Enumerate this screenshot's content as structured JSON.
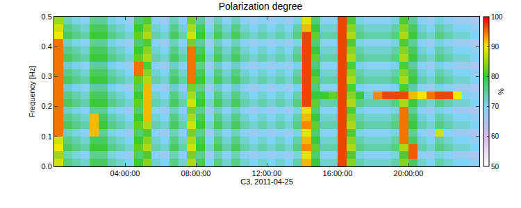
{
  "chart_data": {
    "type": "heatmap",
    "title": "Polarization degree",
    "x_label": "C3, 2011-04-25",
    "y_label": "Frequency [Hz]",
    "xlim": [
      0,
      24
    ],
    "xticks": [
      {
        "value": 4,
        "label": "04:00:00"
      },
      {
        "value": 8,
        "label": "08:00:00"
      },
      {
        "value": 12,
        "label": "12:00:00"
      },
      {
        "value": 16,
        "label": "16:00:00"
      },
      {
        "value": 20,
        "label": "20:00:00"
      }
    ],
    "ylim": [
      0,
      0.5
    ],
    "yticks": [
      {
        "value": 0,
        "label": "0.0"
      },
      0.1,
      0.2,
      0.3,
      0.4,
      0.5
    ],
    "x": [
      0.25,
      0.75,
      1.25,
      1.75,
      2.25,
      2.75,
      3.25,
      3.75,
      4.25,
      4.75,
      5.25,
      5.75,
      6.25,
      6.75,
      7.25,
      7.75,
      8.25,
      8.75,
      9.25,
      9.75,
      10.25,
      10.75,
      11.25,
      11.75,
      12.25,
      12.75,
      13.25,
      13.75,
      14.25,
      14.75,
      15.25,
      15.75,
      16.25,
      16.75,
      17.25,
      17.75,
      18.25,
      18.75,
      19.25,
      19.75,
      20.25,
      20.75,
      21.25,
      21.75,
      22.25,
      22.75,
      23.25,
      23.75
    ],
    "y": [
      0.0125,
      0.0375,
      0.0625,
      0.0875,
      0.1125,
      0.1375,
      0.1625,
      0.1875,
      0.2125,
      0.2375,
      0.2625,
      0.2875,
      0.3125,
      0.3375,
      0.3625,
      0.3875,
      0.4125,
      0.4375,
      0.4625,
      0.4875
    ],
    "cells": [
      [
        88,
        76,
        74,
        72,
        78,
        78,
        74,
        72,
        70,
        80,
        84,
        72,
        70,
        76,
        72,
        86,
        78,
        70,
        76,
        72,
        76,
        72,
        70,
        72,
        70,
        72,
        70,
        74,
        92,
        80,
        72,
        72,
        97,
        84,
        74,
        72,
        72,
        72,
        74,
        84,
        78,
        72,
        70,
        74,
        72,
        70,
        70,
        68
      ],
      [
        85,
        73,
        71,
        69,
        75,
        75,
        71,
        69,
        67,
        77,
        81,
        69,
        67,
        73,
        69,
        83,
        75,
        67,
        73,
        69,
        73,
        69,
        67,
        69,
        67,
        69,
        67,
        71,
        89,
        77,
        69,
        69,
        97,
        81,
        71,
        69,
        69,
        69,
        71,
        81,
        96,
        69,
        67,
        71,
        69,
        67,
        67,
        65
      ],
      [
        90,
        78,
        76,
        74,
        80,
        80,
        76,
        74,
        72,
        82,
        86,
        74,
        72,
        78,
        74,
        88,
        80,
        72,
        78,
        74,
        78,
        74,
        72,
        74,
        72,
        74,
        72,
        76,
        94,
        82,
        74,
        74,
        97,
        86,
        76,
        74,
        74,
        74,
        76,
        86,
        96,
        74,
        72,
        76,
        74,
        72,
        72,
        70
      ],
      [
        88,
        76,
        74,
        72,
        78,
        78,
        74,
        72,
        70,
        80,
        84,
        72,
        70,
        76,
        72,
        86,
        78,
        70,
        76,
        72,
        76,
        72,
        70,
        72,
        70,
        72,
        70,
        74,
        92,
        80,
        72,
        72,
        97,
        84,
        74,
        72,
        72,
        72,
        74,
        95,
        78,
        72,
        70,
        74,
        72,
        70,
        70,
        68
      ],
      [
        95,
        73,
        71,
        69,
        92,
        75,
        71,
        69,
        67,
        77,
        81,
        69,
        67,
        73,
        69,
        83,
        75,
        67,
        73,
        69,
        73,
        69,
        67,
        69,
        67,
        69,
        67,
        71,
        89,
        77,
        69,
        69,
        97,
        81,
        71,
        69,
        69,
        69,
        71,
        95,
        75,
        69,
        67,
        88,
        69,
        67,
        67,
        65
      ],
      [
        95,
        78,
        76,
        74,
        92,
        80,
        76,
        74,
        72,
        82,
        86,
        74,
        72,
        78,
        74,
        88,
        80,
        72,
        78,
        74,
        78,
        74,
        72,
        74,
        72,
        74,
        72,
        76,
        94,
        82,
        74,
        74,
        97,
        86,
        76,
        74,
        74,
        74,
        76,
        95,
        80,
        74,
        72,
        76,
        74,
        72,
        72,
        70
      ],
      [
        95,
        76,
        74,
        72,
        92,
        78,
        74,
        72,
        70,
        80,
        92,
        72,
        70,
        76,
        72,
        86,
        78,
        70,
        76,
        72,
        76,
        72,
        70,
        72,
        70,
        72,
        70,
        74,
        92,
        80,
        72,
        72,
        97,
        84,
        74,
        72,
        72,
        72,
        74,
        95,
        78,
        72,
        70,
        74,
        72,
        70,
        70,
        68
      ],
      [
        95,
        73,
        71,
        69,
        75,
        75,
        71,
        69,
        67,
        77,
        92,
        69,
        67,
        73,
        69,
        83,
        75,
        67,
        73,
        69,
        73,
        69,
        67,
        69,
        67,
        69,
        67,
        71,
        89,
        77,
        69,
        69,
        97,
        81,
        71,
        69,
        69,
        69,
        71,
        95,
        75,
        69,
        67,
        71,
        69,
        67,
        67,
        65
      ],
      [
        95,
        78,
        76,
        74,
        80,
        80,
        76,
        74,
        72,
        82,
        92,
        74,
        72,
        78,
        74,
        88,
        80,
        72,
        78,
        74,
        78,
        74,
        72,
        74,
        72,
        74,
        72,
        76,
        97,
        82,
        74,
        74,
        97,
        86,
        76,
        74,
        74,
        74,
        76,
        86,
        80,
        74,
        72,
        76,
        74,
        72,
        72,
        70
      ],
      [
        95,
        76,
        74,
        72,
        78,
        78,
        74,
        72,
        70,
        80,
        92,
        72,
        70,
        76,
        72,
        86,
        78,
        70,
        76,
        72,
        76,
        72,
        70,
        72,
        70,
        72,
        70,
        74,
        97,
        80,
        80,
        82,
        97,
        84,
        80,
        72,
        94,
        97,
        97,
        97,
        92,
        90,
        95,
        97,
        97,
        90,
        70,
        68
      ],
      [
        95,
        73,
        71,
        69,
        75,
        75,
        71,
        69,
        67,
        77,
        92,
        69,
        67,
        73,
        69,
        83,
        75,
        67,
        73,
        69,
        73,
        69,
        67,
        69,
        67,
        69,
        67,
        71,
        97,
        77,
        69,
        69,
        97,
        81,
        71,
        69,
        69,
        69,
        71,
        81,
        75,
        69,
        67,
        71,
        69,
        67,
        67,
        65
      ],
      [
        95,
        78,
        76,
        74,
        80,
        80,
        76,
        74,
        72,
        82,
        86,
        74,
        72,
        78,
        74,
        95,
        80,
        72,
        78,
        74,
        78,
        74,
        72,
        74,
        72,
        74,
        72,
        76,
        97,
        82,
        74,
        74,
        97,
        86,
        76,
        74,
        74,
        74,
        76,
        86,
        80,
        74,
        72,
        76,
        74,
        72,
        72,
        70
      ],
      [
        95,
        76,
        74,
        72,
        78,
        78,
        74,
        72,
        70,
        95,
        84,
        72,
        70,
        76,
        72,
        95,
        78,
        70,
        76,
        72,
        76,
        72,
        70,
        72,
        70,
        72,
        70,
        74,
        97,
        80,
        72,
        72,
        97,
        84,
        74,
        72,
        72,
        72,
        74,
        84,
        78,
        72,
        70,
        74,
        72,
        70,
        70,
        68
      ],
      [
        95,
        73,
        71,
        69,
        75,
        75,
        71,
        69,
        67,
        95,
        81,
        69,
        67,
        73,
        69,
        95,
        75,
        67,
        73,
        69,
        73,
        69,
        67,
        69,
        67,
        69,
        67,
        71,
        97,
        77,
        69,
        69,
        97,
        81,
        71,
        69,
        69,
        69,
        71,
        81,
        75,
        69,
        67,
        71,
        69,
        67,
        67,
        65
      ],
      [
        95,
        78,
        76,
        74,
        80,
        80,
        76,
        74,
        72,
        82,
        86,
        74,
        72,
        78,
        74,
        95,
        80,
        72,
        78,
        74,
        78,
        74,
        72,
        74,
        72,
        74,
        72,
        76,
        97,
        82,
        74,
        74,
        97,
        86,
        76,
        74,
        74,
        74,
        76,
        86,
        80,
        74,
        72,
        76,
        74,
        72,
        72,
        70
      ],
      [
        95,
        76,
        74,
        72,
        78,
        78,
        74,
        72,
        70,
        80,
        84,
        72,
        70,
        76,
        72,
        95,
        78,
        70,
        76,
        72,
        76,
        72,
        70,
        72,
        70,
        72,
        70,
        74,
        97,
        80,
        72,
        72,
        97,
        84,
        74,
        72,
        72,
        72,
        74,
        84,
        78,
        72,
        70,
        74,
        72,
        70,
        70,
        68
      ],
      [
        95,
        73,
        71,
        69,
        75,
        75,
        71,
        69,
        67,
        77,
        81,
        69,
        67,
        73,
        69,
        83,
        75,
        67,
        73,
        69,
        73,
        69,
        67,
        69,
        67,
        69,
        67,
        71,
        97,
        77,
        69,
        69,
        97,
        81,
        71,
        69,
        69,
        69,
        71,
        81,
        75,
        69,
        67,
        71,
        69,
        67,
        67,
        65
      ],
      [
        90,
        78,
        76,
        74,
        80,
        80,
        76,
        74,
        72,
        82,
        86,
        74,
        72,
        78,
        74,
        88,
        80,
        72,
        78,
        74,
        78,
        74,
        72,
        74,
        72,
        74,
        72,
        76,
        97,
        82,
        74,
        74,
        97,
        86,
        76,
        74,
        74,
        74,
        76,
        86,
        80,
        74,
        72,
        76,
        74,
        72,
        72,
        70
      ],
      [
        88,
        76,
        74,
        72,
        78,
        78,
        74,
        72,
        70,
        80,
        84,
        72,
        70,
        76,
        72,
        86,
        78,
        70,
        76,
        72,
        76,
        72,
        70,
        72,
        70,
        72,
        70,
        74,
        92,
        80,
        72,
        72,
        97,
        84,
        74,
        72,
        72,
        72,
        74,
        84,
        78,
        72,
        70,
        74,
        72,
        70,
        70,
        68
      ],
      [
        85,
        73,
        71,
        69,
        75,
        75,
        71,
        69,
        67,
        77,
        81,
        69,
        67,
        73,
        69,
        83,
        75,
        67,
        73,
        69,
        73,
        69,
        67,
        69,
        67,
        69,
        67,
        71,
        89,
        77,
        69,
        69,
        97,
        81,
        71,
        69,
        69,
        69,
        71,
        81,
        75,
        69,
        67,
        71,
        69,
        67,
        67,
        65
      ]
    ],
    "colorbar": {
      "title": "%",
      "range": [
        50,
        100
      ],
      "ticks": [
        50,
        60,
        70,
        80,
        90,
        100
      ]
    }
  }
}
